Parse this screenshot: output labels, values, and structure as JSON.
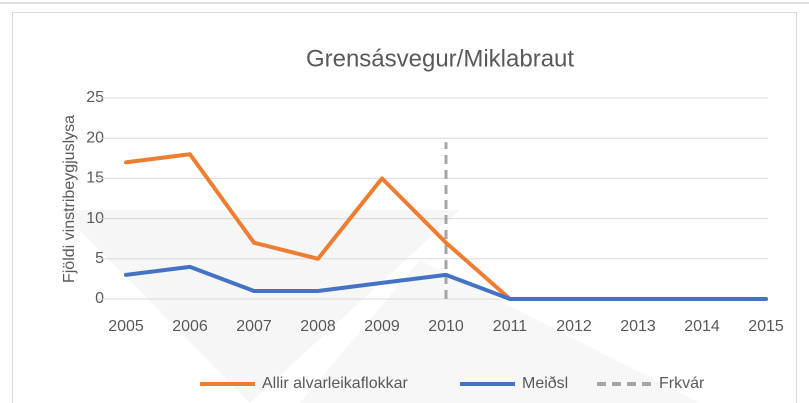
{
  "chart_data": {
    "type": "line",
    "title": "Grensásvegur/Miklabraut",
    "ylabel": "Fjöldi vinstribeygjuslysa",
    "categories": [
      "2005",
      "2006",
      "2007",
      "2008",
      "2009",
      "2010",
      "2011",
      "2012",
      "2013",
      "2014",
      "2015"
    ],
    "series": [
      {
        "name": "Allir alvarleikaflokkar",
        "color": "#ed7d31",
        "values": [
          17,
          18,
          7,
          5,
          15,
          7,
          0,
          0,
          0,
          0,
          0
        ]
      },
      {
        "name": "Meiðsl",
        "color": "#4472c4",
        "values": [
          3,
          4,
          1,
          1,
          2,
          3,
          0,
          0,
          0,
          0,
          0
        ]
      }
    ],
    "reference_line": {
      "name": "Frkvár",
      "x": "2010",
      "from": 0,
      "to": 19.5,
      "color": "#a5a5a5"
    },
    "ylim": [
      0,
      25
    ],
    "yticks": [
      0,
      5,
      10,
      15,
      20,
      25
    ],
    "grid": true,
    "legend": "bottom"
  }
}
